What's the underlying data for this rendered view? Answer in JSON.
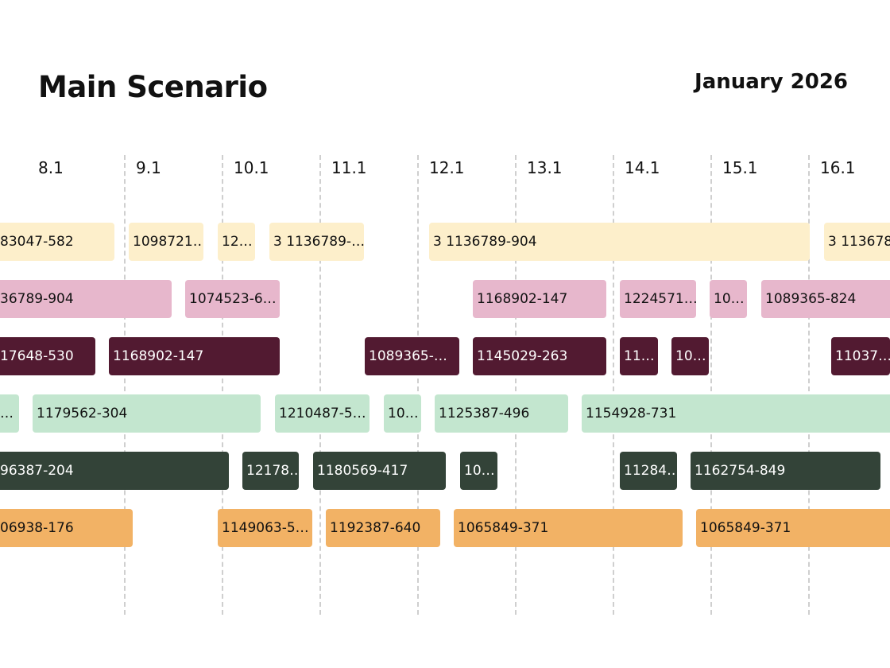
{
  "header": {
    "title": "Main Scenario",
    "month": "January 2026"
  },
  "days": [
    "8.1",
    "9.1",
    "10.1",
    "11.1",
    "12.1",
    "13.1",
    "14.1",
    "15.1",
    "16.1"
  ],
  "rows": [
    {
      "items": [
        {
          "label": "83047-582"
        },
        {
          "label": "1098721…"
        },
        {
          "label": "12…"
        },
        {
          "label": "3 1136789-…"
        },
        {
          "label": "3 1136789-904"
        },
        {
          "label": "3 113678"
        }
      ]
    },
    {
      "items": [
        {
          "label": "36789-904"
        },
        {
          "label": "1074523-6…"
        },
        {
          "label": "1168902-147"
        },
        {
          "label": "1224571…"
        },
        {
          "label": "10…"
        },
        {
          "label": "1089365-824"
        }
      ]
    },
    {
      "items": [
        {
          "label": "17648-530"
        },
        {
          "label": "1168902-147"
        },
        {
          "label": "1089365-…"
        },
        {
          "label": "1145029-263"
        },
        {
          "label": "11…"
        },
        {
          "label": "10…"
        },
        {
          "label": "11037…"
        }
      ]
    },
    {
      "items": [
        {
          "label": "…"
        },
        {
          "label": "1179562-304"
        },
        {
          "label": "1210487-5…"
        },
        {
          "label": "10…"
        },
        {
          "label": "1125387-496"
        },
        {
          "label": "1154928-731"
        }
      ]
    },
    {
      "items": [
        {
          "label": "96387-204"
        },
        {
          "label": "12178…"
        },
        {
          "label": "1180569-417"
        },
        {
          "label": "10…"
        },
        {
          "label": "11284…"
        },
        {
          "label": "1162754-849"
        }
      ]
    },
    {
      "items": [
        {
          "label": "06938-176"
        },
        {
          "label": "1149063-5…"
        },
        {
          "label": "1192387-640"
        },
        {
          "label": "1065849-371"
        },
        {
          "label": "1065849-371"
        }
      ]
    }
  ]
}
